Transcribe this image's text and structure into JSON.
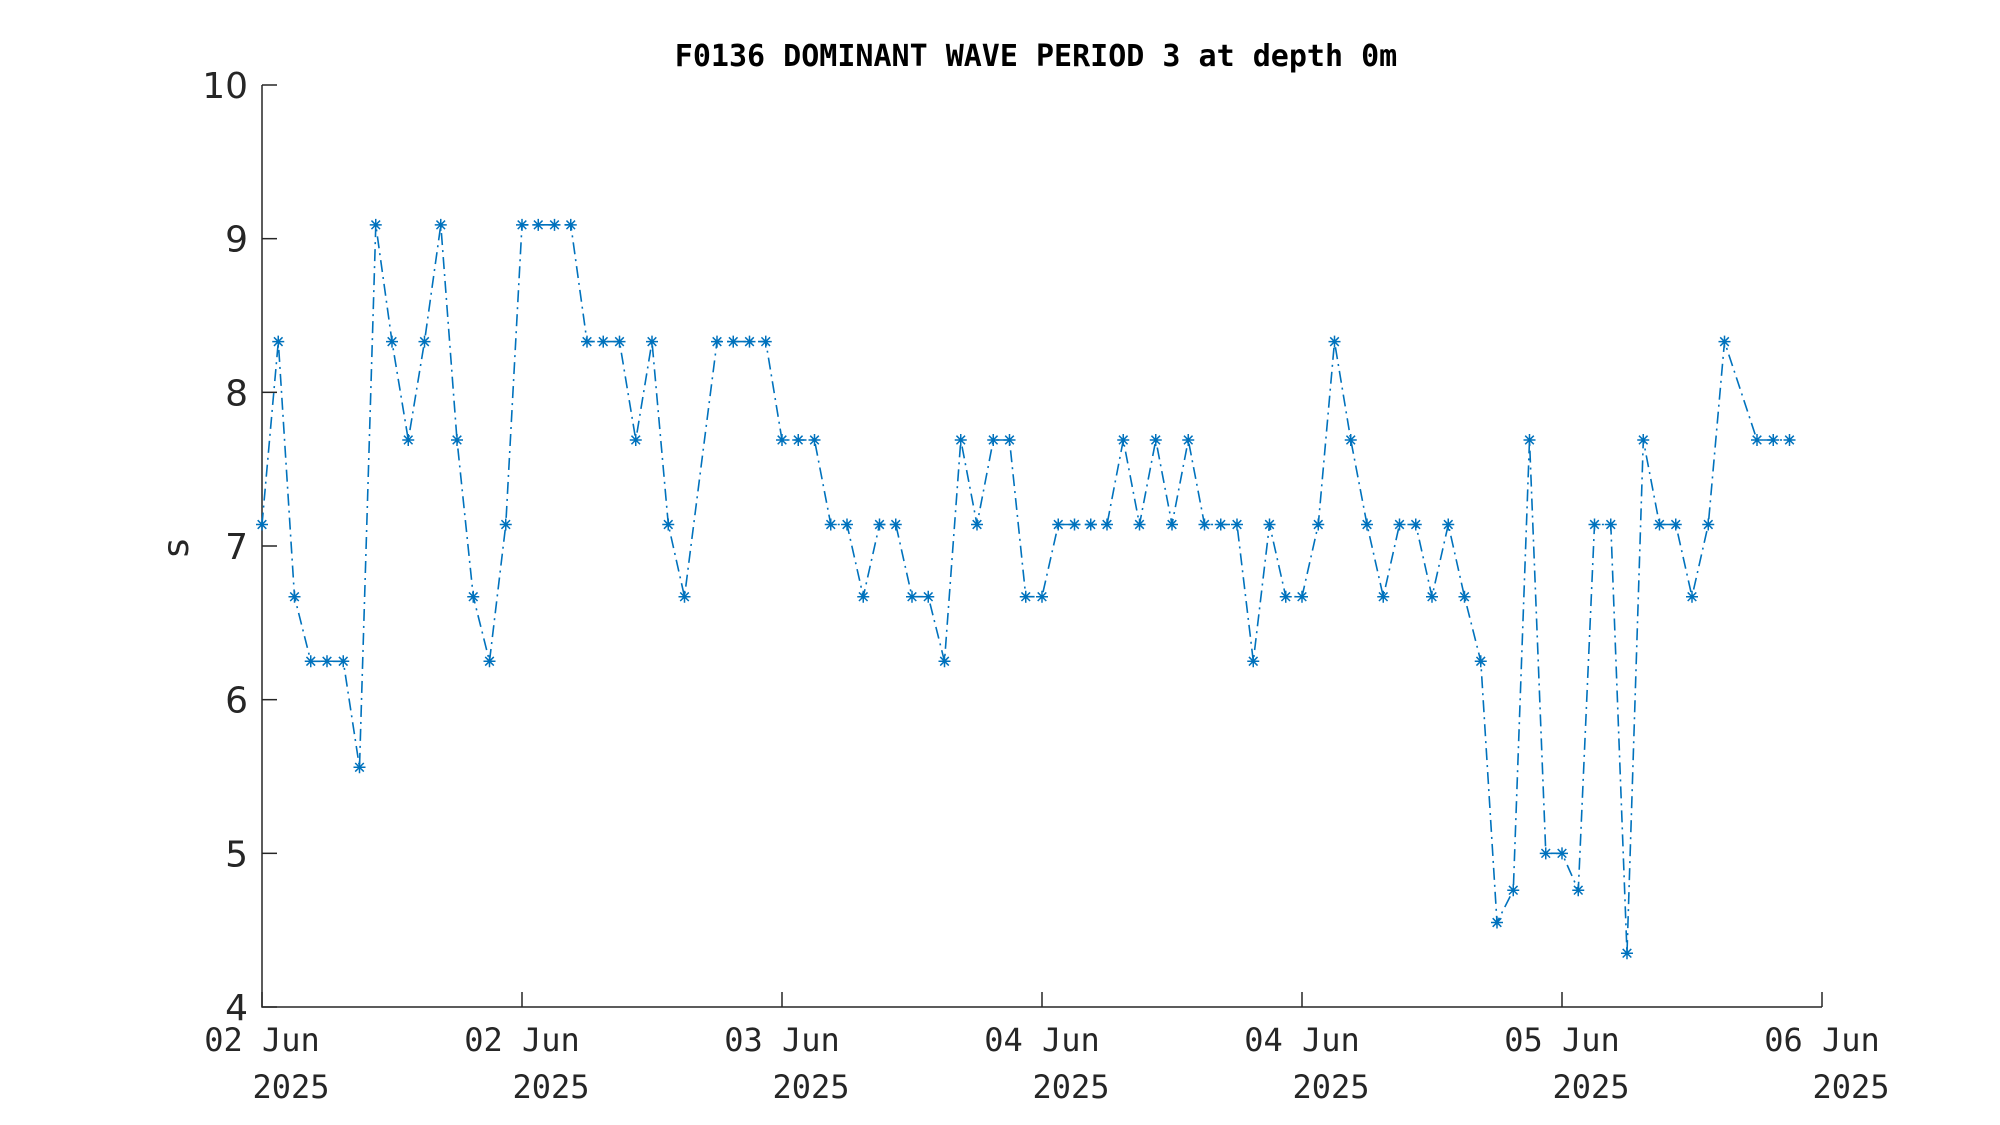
{
  "chart_data": {
    "type": "line",
    "title": "F0136 DOMINANT WAVE PERIOD 3 at depth 0m",
    "xlabel": "",
    "ylabel": "s",
    "ylim": [
      4,
      10
    ],
    "yticks": [
      "4",
      "5",
      "6",
      "7",
      "8",
      "9",
      "10"
    ],
    "xticks": [
      {
        "date": "02 Jun",
        "year": "2025"
      },
      {
        "date": "02 Jun",
        "year": "2025"
      },
      {
        "date": "03 Jun",
        "year": "2025"
      },
      {
        "date": "04 Jun",
        "year": "2025"
      },
      {
        "date": "04 Jun",
        "year": "2025"
      },
      {
        "date": "05 Jun",
        "year": "2025"
      },
      {
        "date": "06 Jun",
        "year": "2025"
      }
    ],
    "grid": false,
    "series": [
      {
        "color": "#0072BD",
        "line_style": "dash-dot",
        "marker": "asterisk",
        "x": [
          "2025-06-02 00:00",
          "2025-06-02 01:00",
          "2025-06-02 02:00",
          "2025-06-02 03:00",
          "2025-06-02 04:00",
          "2025-06-02 05:00",
          "2025-06-02 06:00",
          "2025-06-02 07:00",
          "2025-06-02 08:00",
          "2025-06-02 09:00",
          "2025-06-02 10:00",
          "2025-06-02 11:00",
          "2025-06-02 12:00",
          "2025-06-02 13:00",
          "2025-06-02 14:00",
          "2025-06-02 15:00",
          "2025-06-02 16:00",
          "2025-06-02 17:00",
          "2025-06-02 18:00",
          "2025-06-02 19:00",
          "2025-06-02 20:00",
          "2025-06-02 21:00",
          "2025-06-02 22:00",
          "2025-06-02 23:00",
          "2025-06-03 00:00",
          "2025-06-03 01:00",
          "2025-06-03 02:00",
          "2025-06-03 03:00",
          "2025-06-03 04:00",
          "2025-06-03 05:00",
          "2025-06-03 06:00",
          "2025-06-03 07:00",
          "2025-06-03 08:00",
          "2025-06-03 09:00",
          "2025-06-03 10:00",
          "2025-06-03 11:00",
          "2025-06-03 12:00",
          "2025-06-03 13:00",
          "2025-06-03 14:00",
          "2025-06-03 15:00",
          "2025-06-03 16:00",
          "2025-06-03 17:00",
          "2025-06-03 18:00",
          "2025-06-03 19:00",
          "2025-06-03 20:00",
          "2025-06-03 21:00",
          "2025-06-03 22:00",
          "2025-06-03 23:00",
          "2025-06-04 00:00",
          "2025-06-04 01:00",
          "2025-06-04 02:00",
          "2025-06-04 03:00",
          "2025-06-04 04:00",
          "2025-06-04 05:00",
          "2025-06-04 06:00",
          "2025-06-04 07:00",
          "2025-06-04 08:00",
          "2025-06-04 09:00",
          "2025-06-04 10:00",
          "2025-06-04 11:00",
          "2025-06-04 12:00",
          "2025-06-04 13:00",
          "2025-06-04 14:00",
          "2025-06-04 15:00",
          "2025-06-04 16:00",
          "2025-06-04 17:00",
          "2025-06-04 18:00",
          "2025-06-04 19:00",
          "2025-06-04 20:00",
          "2025-06-04 21:00",
          "2025-06-04 22:00",
          "2025-06-04 23:00",
          "2025-06-05 00:00",
          "2025-06-05 01:00",
          "2025-06-05 02:00",
          "2025-06-05 03:00",
          "2025-06-05 04:00",
          "2025-06-05 05:00",
          "2025-06-05 06:00",
          "2025-06-05 07:00",
          "2025-06-05 08:00",
          "2025-06-05 09:00",
          "2025-06-05 10:00",
          "2025-06-05 11:00",
          "2025-06-05 12:00",
          "2025-06-05 13:00",
          "2025-06-05 14:00",
          "2025-06-05 15:00",
          "2025-06-05 16:00",
          "2025-06-05 17:00",
          "2025-06-05 18:00",
          "2025-06-05 19:00",
          "2025-06-05 20:00",
          "2025-06-05 21:00",
          "2025-06-05 22:00",
          "2025-06-05 23:00",
          "2025-06-06 00:00"
        ],
        "y": [
          7.14,
          8.33,
          6.67,
          6.25,
          6.25,
          6.25,
          5.56,
          9.09,
          8.33,
          7.69,
          8.33,
          9.09,
          7.69,
          6.67,
          6.25,
          7.14,
          9.09,
          9.09,
          9.09,
          9.09,
          8.33,
          8.33,
          8.33,
          7.69,
          8.33,
          7.14,
          6.67,
          null,
          8.33,
          8.33,
          8.33,
          8.33,
          7.69,
          7.69,
          7.69,
          7.14,
          7.14,
          6.67,
          7.14,
          7.14,
          6.67,
          6.67,
          6.25,
          7.69,
          7.14,
          7.69,
          7.69,
          6.67,
          6.67,
          7.14,
          7.14,
          7.14,
          7.14,
          7.69,
          7.14,
          7.69,
          7.14,
          7.69,
          7.14,
          7.14,
          7.14,
          6.25,
          7.14,
          6.67,
          6.67,
          7.14,
          8.33,
          7.69,
          7.14,
          6.67,
          7.14,
          7.14,
          6.67,
          7.14,
          6.67,
          6.25,
          4.55,
          4.76,
          7.69,
          5.0,
          5.0,
          4.76,
          7.14,
          7.14,
          4.35,
          7.69,
          7.14,
          7.14,
          6.67,
          7.14,
          8.33,
          null,
          7.69,
          7.69,
          7.69,
          null,
          null
        ]
      }
    ]
  }
}
